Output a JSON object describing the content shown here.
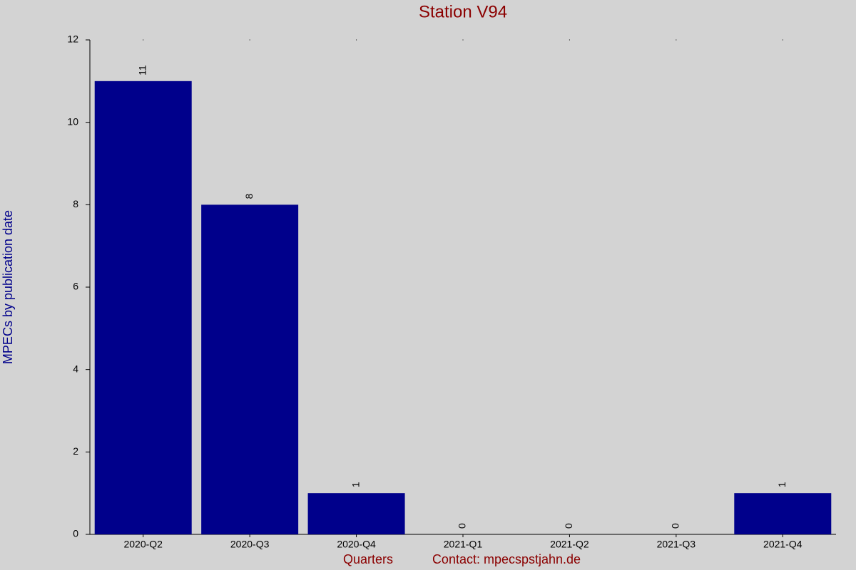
{
  "chart_data": {
    "type": "bar",
    "title": "Station V94",
    "x_label": "Quarters",
    "contact": "Contact: mpecspstjahn.de",
    "y_label": "MPECs by publication date",
    "categories": [
      "2020-Q2",
      "2020-Q3",
      "2020-Q4",
      "2021-Q1",
      "2021-Q2",
      "2021-Q3",
      "2021-Q4"
    ],
    "values": [
      11,
      8,
      1,
      0,
      0,
      0,
      1
    ],
    "color": "#00008b",
    "ylim": [
      0,
      12
    ],
    "yticks": [
      0,
      2,
      4,
      6,
      8,
      10,
      12
    ],
    "grid": false
  }
}
